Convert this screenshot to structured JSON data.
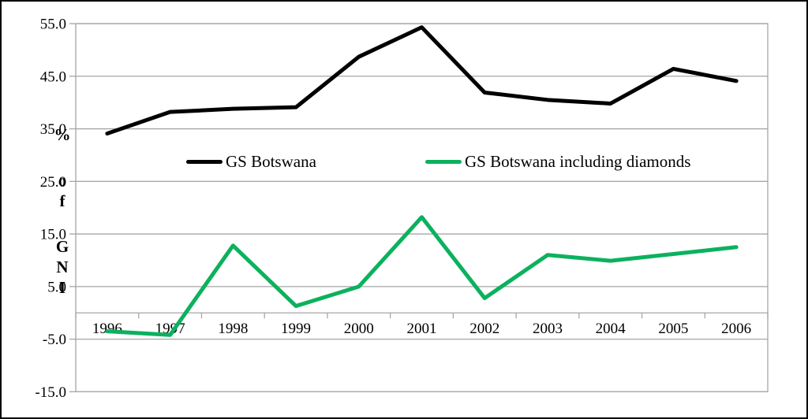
{
  "chart_data": {
    "type": "line",
    "title": "",
    "xlabel": "",
    "ylabel": "% of GNI",
    "categories": [
      "1996",
      "1997",
      "1998",
      "1999",
      "2000",
      "2001",
      "2002",
      "2003",
      "2004",
      "2005",
      "2006"
    ],
    "series": [
      {
        "name": "GS Botswana",
        "color": "#000000",
        "values": [
          34.1,
          38.2,
          38.8,
          39.1,
          48.7,
          54.3,
          41.9,
          40.5,
          39.8,
          46.4,
          44.1
        ]
      },
      {
        "name": "GS Botswana including diamonds",
        "color": "#0CB15E",
        "values": [
          -3.5,
          -4.2,
          12.8,
          1.3,
          5.0,
          18.2,
          2.8,
          11.0,
          9.9,
          11.2,
          12.5
        ]
      }
    ],
    "ylim": [
      -15,
      55
    ],
    "yticks": [
      55,
      45,
      35,
      25,
      15,
      5,
      -5,
      -15
    ],
    "ytick_labels": [
      "55.0",
      "45.0",
      "35.0",
      "25.0",
      "15.0",
      "5.0",
      "-5.0",
      "-15.0"
    ],
    "grid": true,
    "legend_position": "inside-upper-middle",
    "zero_axis": true,
    "colors": {
      "gridline": "#A6A6A6",
      "axis": "#A6A6A6",
      "text": "#000000",
      "frame_border": "#000000",
      "background": "#FFFFFF"
    }
  }
}
